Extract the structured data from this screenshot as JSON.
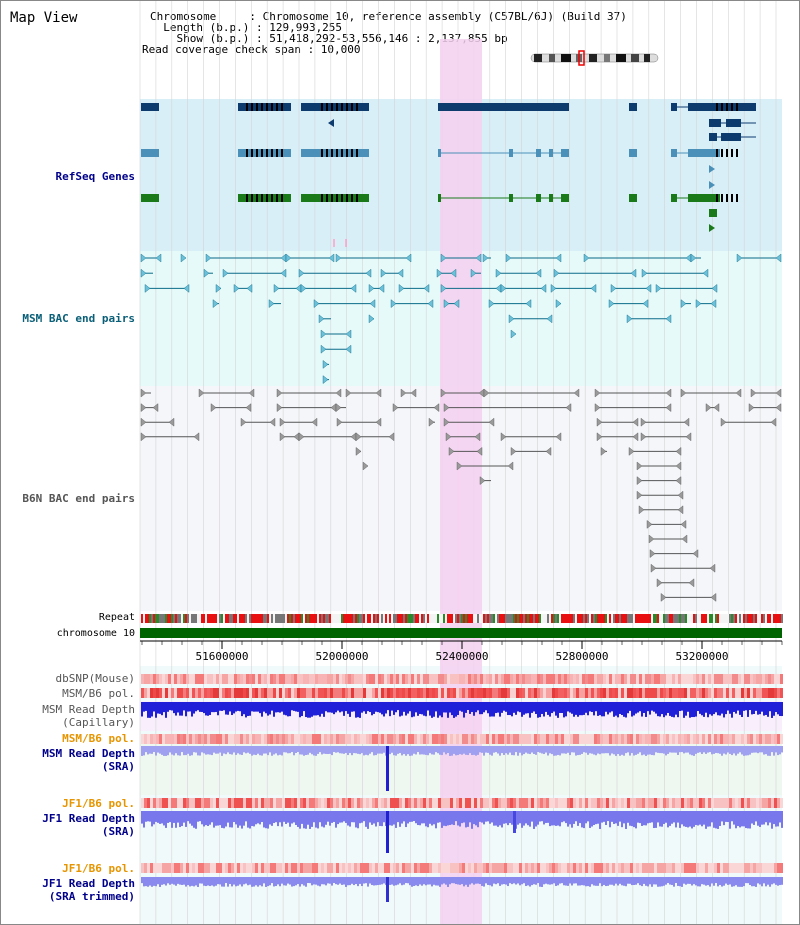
{
  "title": "Map View",
  "info": {
    "chromosome": "Chromosome     : Chromosome 10, reference assembly (C57BL/6J) (Build 37)",
    "length": "  Length (b.p.) : 129,993,255",
    "show": "    Show (b.p.) : 51,418,292-53,556,146 : 2,137,855 bp",
    "coverage": "Read coverage check span : 10,000"
  },
  "tracks": {
    "refseq": "RefSeq Genes",
    "msm_bac": "MSM BAC end pairs",
    "b6n_bac": "B6N BAC end pairs",
    "repeat": "Repeat",
    "chromosome": "chromosome 10",
    "dbsnp": "dbSNP(Mouse)",
    "msm_b6_pol_1": "MSM/B6 pol.",
    "msm_depth_cap_1": "MSM Read Depth",
    "msm_depth_cap_2": "(Capillary)",
    "msm_b6_pol_2": "MSM/B6 pol.",
    "msm_depth_sra_1": "MSM Read Depth",
    "msm_depth_sra_2": "(SRA)",
    "jf1_pol_1": "JF1/B6 pol.",
    "jf1_depth_1": "JF1 Read Depth",
    "jf1_depth_2": "(SRA)",
    "jf1_pol_2": "JF1/B6 pol.",
    "jf1_trim_1": "JF1 Read Depth",
    "jf1_trim_2": "(SRA trimmed)"
  },
  "axis": {
    "ticks": [
      "51600000",
      "52000000",
      "52400000",
      "52800000",
      "53200000"
    ]
  },
  "colors": {
    "refseq_bg": "#d9eff8",
    "msm_bac_bg": "#e6fafa",
    "b6n_bg": "#f4f6fa",
    "highlight": "#f5d0f0",
    "gene_dark": "#0d3b6e",
    "gene_mid": "#4a90b8",
    "gene_green": "#1a7a1a",
    "chromosome_bar": "#006400",
    "label_blue": "#00008b",
    "label_orange": "#e69500"
  }
}
